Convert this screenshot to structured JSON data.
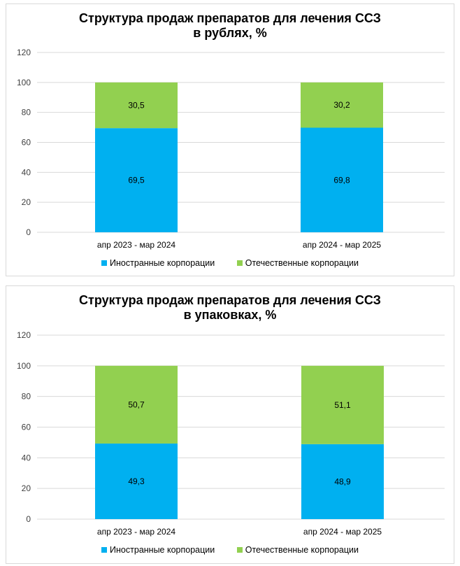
{
  "colors": {
    "foreign": "#00b0f0",
    "domestic": "#92d050"
  },
  "legend": {
    "foreign": "Иностранные корпорации",
    "domestic": "Отечественные корпорации"
  },
  "chart_data": [
    {
      "type": "bar",
      "stacked": true,
      "title_line1": "Структура продаж препаратов для лечения ССЗ",
      "title_line2": "в рублях, %",
      "categories": [
        "апр 2023 - мар 2024",
        "апр 2024 - мар 2025"
      ],
      "series": [
        {
          "name": "Иностранные корпорации",
          "values": [
            69.5,
            69.8
          ],
          "labels": [
            "69,5",
            "69,8"
          ]
        },
        {
          "name": "Отечественные корпорации",
          "values": [
            30.5,
            30.2
          ],
          "labels": [
            "30,5",
            "30,2"
          ]
        }
      ],
      "yticks": [
        "0",
        "20",
        "40",
        "60",
        "80",
        "100",
        "120"
      ],
      "ylim": [
        0,
        120
      ],
      "grid": true,
      "legend_position": "bottom"
    },
    {
      "type": "bar",
      "stacked": true,
      "title_line1": "Структура продаж препаратов для лечения ССЗ",
      "title_line2": "в упаковках, %",
      "categories": [
        "апр 2023 - мар 2024",
        "апр 2024 - мар 2025"
      ],
      "series": [
        {
          "name": "Иностранные корпорации",
          "values": [
            49.3,
            48.9
          ],
          "labels": [
            "49,3",
            "48,9"
          ]
        },
        {
          "name": "Отечественные корпорации",
          "values": [
            50.7,
            51.1
          ],
          "labels": [
            "50,7",
            "51,1"
          ]
        }
      ],
      "yticks": [
        "0",
        "20",
        "40",
        "60",
        "80",
        "100",
        "120"
      ],
      "ylim": [
        0,
        120
      ],
      "grid": true,
      "legend_position": "bottom"
    }
  ]
}
